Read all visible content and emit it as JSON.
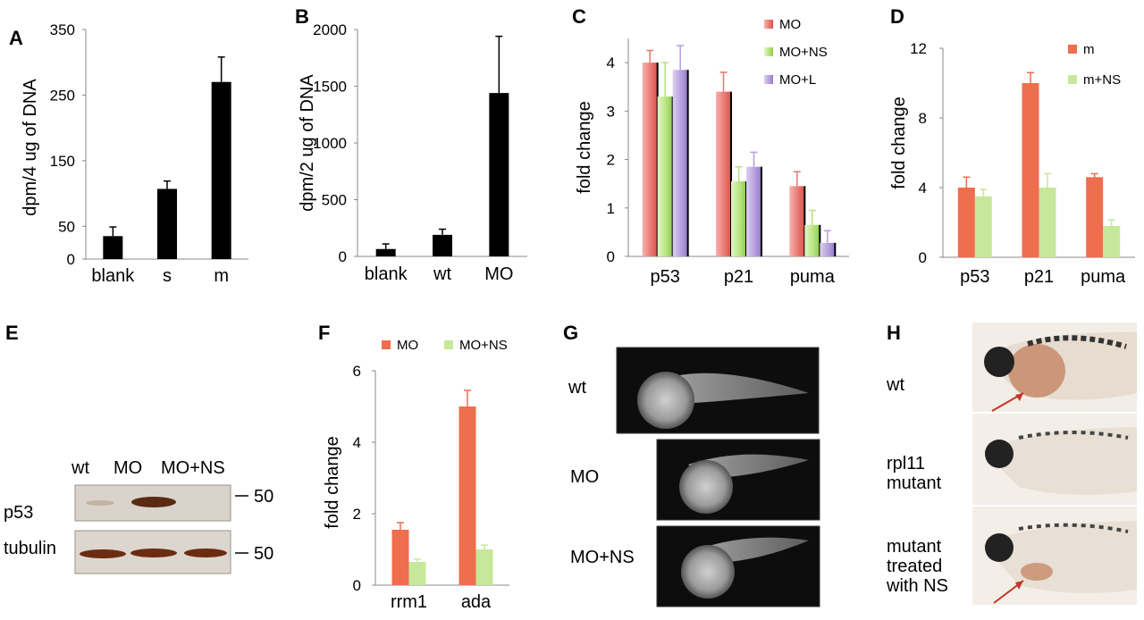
{
  "panels": {
    "A": "A",
    "B": "B",
    "C": "C",
    "D": "D",
    "E": "E",
    "F": "F",
    "G": "G",
    "H": "H"
  },
  "chart_data": [
    {
      "id": "A",
      "type": "bar",
      "ylabel": "dpm/4 ug of DNA",
      "categories": [
        "blank",
        "s",
        "m"
      ],
      "series": [
        {
          "values": [
            35,
            107,
            270
          ],
          "errors": [
            14,
            12,
            38
          ],
          "color": "#000000"
        }
      ],
      "yticks": [
        "0",
        "50",
        "150",
        "250",
        "350"
      ],
      "ylim": [
        0,
        350
      ]
    },
    {
      "id": "B",
      "type": "bar",
      "ylabel": "dpm/2 ug of DNA",
      "categories": [
        "blank",
        "wt",
        "MO"
      ],
      "series": [
        {
          "values": [
            65,
            190,
            1440
          ],
          "errors": [
            45,
            50,
            500
          ],
          "color": "#000000"
        }
      ],
      "yticks": [
        "0",
        "500",
        "1000",
        "1500",
        "2000"
      ],
      "ylim": [
        0,
        2000
      ]
    },
    {
      "id": "C",
      "type": "bar",
      "ylabel": "fold change",
      "categories": [
        "p53",
        "p21",
        "puma"
      ],
      "series": [
        {
          "name": "MO",
          "values": [
            4.0,
            3.4,
            1.45
          ],
          "errors": [
            0.25,
            0.4,
            0.3
          ],
          "color": "#e8766f"
        },
        {
          "name": "MO+NS",
          "values": [
            3.3,
            1.55,
            0.65
          ],
          "errors": [
            0.7,
            0.3,
            0.3
          ],
          "color": "#b6e27c"
        },
        {
          "name": "MO+L",
          "values": [
            3.85,
            1.85,
            0.28
          ],
          "errors": [
            0.5,
            0.3,
            0.25
          ],
          "color": "#b39ddb"
        }
      ],
      "yticks": [
        "0",
        "1",
        "2",
        "3",
        "4"
      ],
      "ylim": [
        0,
        4.5
      ]
    },
    {
      "id": "D",
      "type": "bar",
      "ylabel": "fold change",
      "categories": [
        "p53",
        "p21",
        "puma"
      ],
      "series": [
        {
          "name": "m",
          "values": [
            4.0,
            10.0,
            4.6
          ],
          "errors": [
            0.6,
            0.6,
            0.2
          ],
          "color": "#ee6e4e"
        },
        {
          "name": "m+NS",
          "values": [
            3.5,
            4.0,
            1.8
          ],
          "errors": [
            0.4,
            0.8,
            0.35
          ],
          "color": "#c7e89a"
        }
      ],
      "yticks": [
        "0",
        "4",
        "8",
        "12"
      ],
      "ylim": [
        0,
        12
      ]
    },
    {
      "id": "F",
      "type": "bar",
      "ylabel": "fold change",
      "categories": [
        "rrm1",
        "ada"
      ],
      "series": [
        {
          "name": "MO",
          "values": [
            1.55,
            5.0
          ],
          "errors": [
            0.2,
            0.45
          ],
          "color": "#ee6e4e"
        },
        {
          "name": "MO+NS",
          "values": [
            0.65,
            1.0
          ],
          "errors": [
            0.08,
            0.12
          ],
          "color": "#c7e89a"
        }
      ],
      "yticks": [
        "0",
        "2",
        "4",
        "6"
      ],
      "ylim": [
        0,
        6
      ]
    }
  ],
  "blot": {
    "lanes": [
      "wt",
      "MO",
      "MO+NS"
    ],
    "rows": [
      "p53",
      "tubulin"
    ],
    "marker": "50"
  },
  "embryos": {
    "rows": [
      "wt",
      "MO",
      "MO+NS"
    ]
  },
  "larvae": {
    "rows": [
      "wt",
      "rpl11\nmutant",
      "mutant\ntreated\nwith NS"
    ]
  }
}
